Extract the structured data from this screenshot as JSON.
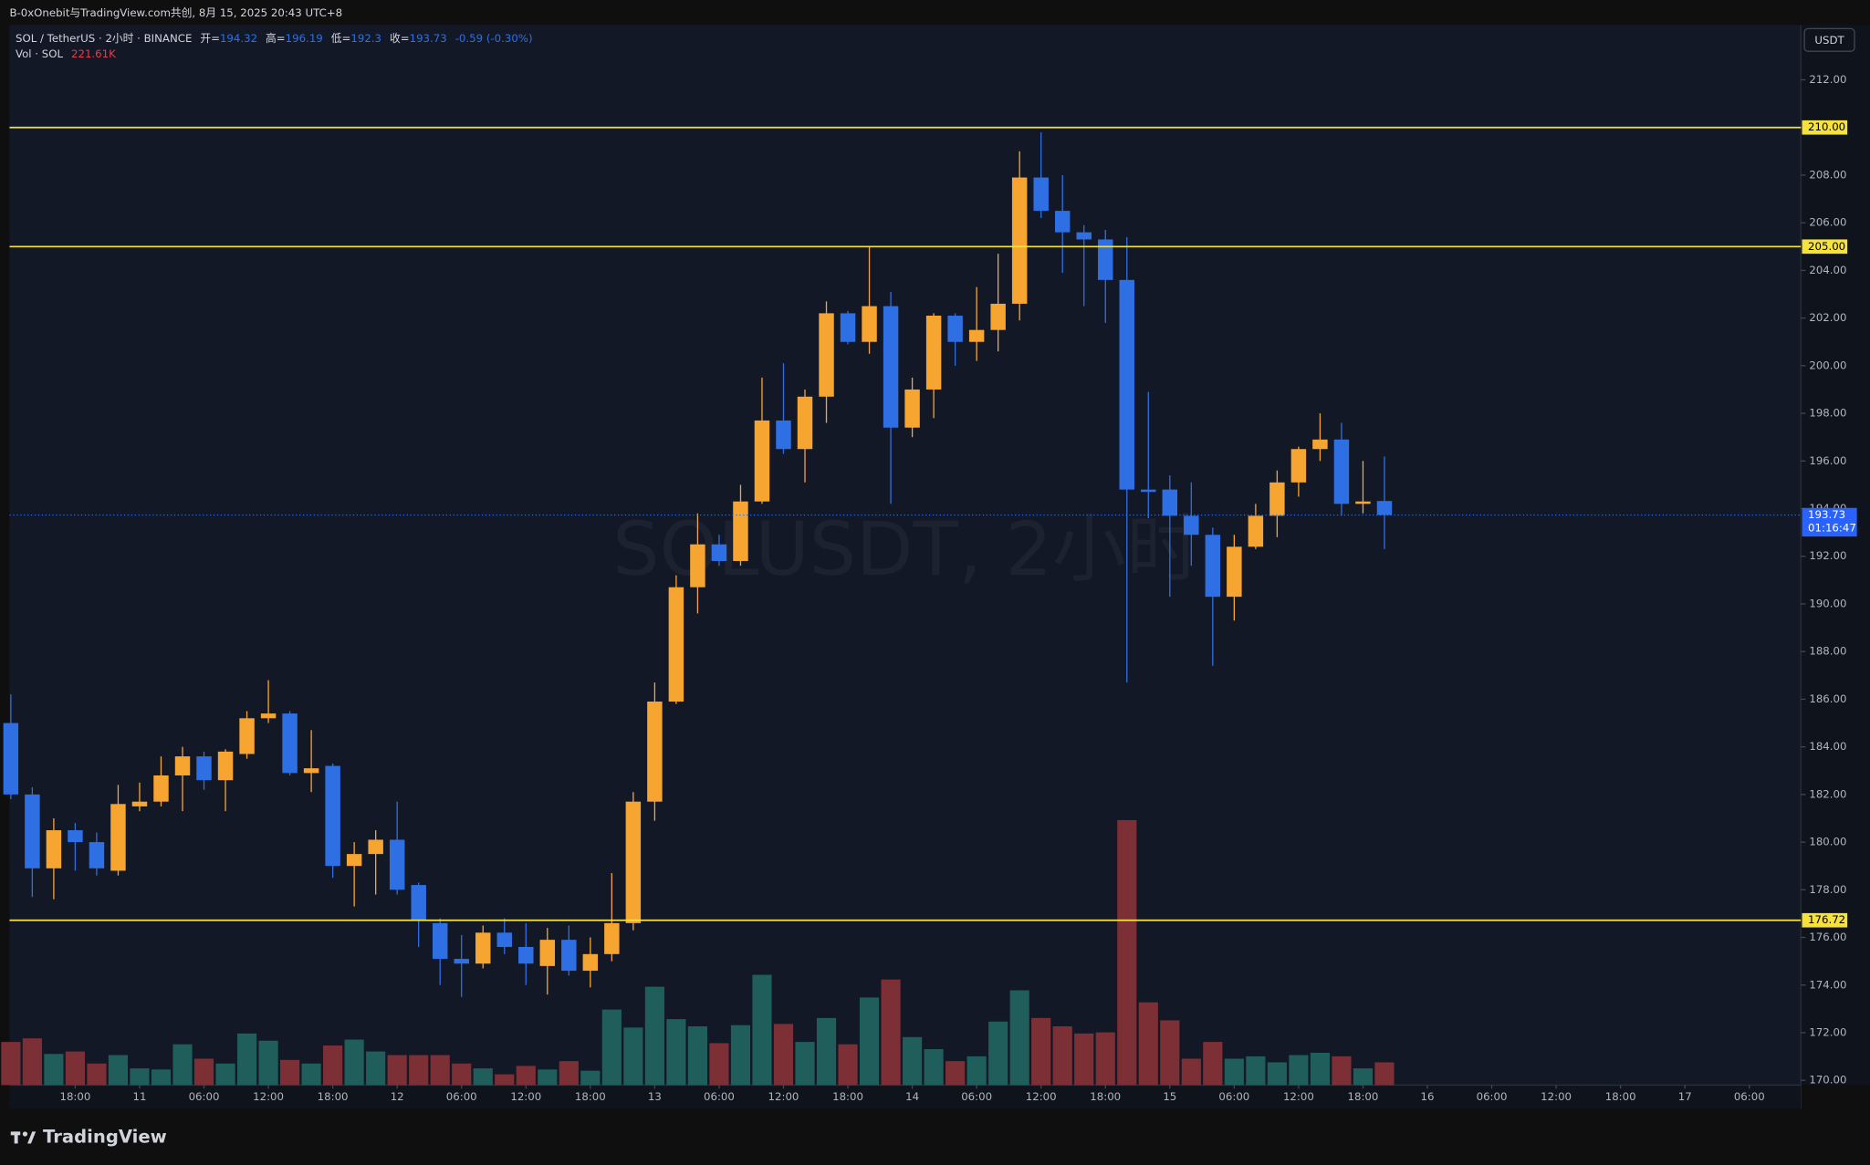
{
  "top_bar": "B-0xOnebit与TradingView.com共创, 8月 15, 2025 20:43 UTC+8",
  "brand": "TradingView",
  "chart_data": {
    "type": "candlestick",
    "watermark": "SOLUSDT, 2小时",
    "currency": "USDT",
    "header": {
      "symbol": "SOL / TetherUS · 2小时 · BINANCE",
      "open_label": "开=",
      "open": 194.32,
      "high_label": "高=",
      "high": 196.19,
      "low_label": "低=",
      "low": 192.3,
      "close_label": "收=",
      "close": 193.73,
      "change": "-0.59 (-0.30%)",
      "vol_label": "Vol · SOL",
      "vol_value": "221.61K"
    },
    "countdown": "01:16:47",
    "up_color": "#f7a531",
    "down_color": "#2f6fe4",
    "vol_up_color": "#1f5e5a",
    "vol_down_color": "#7c2f35",
    "open": [
      185.0,
      182.0,
      178.9,
      180.5,
      180.0,
      178.8,
      181.5,
      181.7,
      182.8,
      183.6,
      182.6,
      183.7,
      185.2,
      185.4,
      182.9,
      183.2,
      179.0,
      179.5,
      180.1,
      178.2,
      176.6,
      175.1,
      174.9,
      176.2,
      175.6,
      174.8,
      175.9,
      174.6,
      175.3,
      176.6,
      181.7,
      185.9,
      190.7,
      192.5,
      191.8,
      194.3,
      197.7,
      196.5,
      198.7,
      202.2,
      201.0,
      202.5,
      197.4,
      199.0,
      202.1,
      201.0,
      201.5,
      202.6,
      207.9,
      206.5,
      205.6,
      205.3,
      203.6,
      194.8,
      194.8,
      193.7,
      192.9,
      190.3,
      192.4,
      193.7,
      195.1,
      196.5,
      196.9,
      194.2,
      194.32
    ],
    "high": [
      186.2,
      182.3,
      181.0,
      180.8,
      180.4,
      182.4,
      182.5,
      183.6,
      184.0,
      183.8,
      183.9,
      185.5,
      186.8,
      185.5,
      184.7,
      183.3,
      180.0,
      180.5,
      181.7,
      178.3,
      176.8,
      176.1,
      176.5,
      176.8,
      176.6,
      176.4,
      176.5,
      176.0,
      178.7,
      182.1,
      186.7,
      191.2,
      193.8,
      192.9,
      195.0,
      199.5,
      200.1,
      199.0,
      202.7,
      202.3,
      205.0,
      203.1,
      199.5,
      202.2,
      202.2,
      203.3,
      204.7,
      209.0,
      209.8,
      208.0,
      205.9,
      205.7,
      205.4,
      198.9,
      195.4,
      195.1,
      193.2,
      192.9,
      194.2,
      195.6,
      196.6,
      198.0,
      197.6,
      196.0,
      196.19
    ],
    "low": [
      181.8,
      177.7,
      177.6,
      178.8,
      178.6,
      178.6,
      181.3,
      181.5,
      181.3,
      182.2,
      181.3,
      183.5,
      185.0,
      182.8,
      182.1,
      178.5,
      177.3,
      177.8,
      177.8,
      175.6,
      174.0,
      173.5,
      174.7,
      175.3,
      174.0,
      173.6,
      174.4,
      173.9,
      175.0,
      176.3,
      180.9,
      185.8,
      189.6,
      191.6,
      191.6,
      194.2,
      196.3,
      195.1,
      197.6,
      200.9,
      200.5,
      194.2,
      197.0,
      197.8,
      200.0,
      200.2,
      200.6,
      201.9,
      206.2,
      203.9,
      202.5,
      201.8,
      186.7,
      193.6,
      190.3,
      191.6,
      187.4,
      189.3,
      192.3,
      192.8,
      194.5,
      196.0,
      193.7,
      193.8,
      192.3
    ],
    "close": [
      182.0,
      178.9,
      180.5,
      180.0,
      178.9,
      181.6,
      181.7,
      182.8,
      183.6,
      182.6,
      183.8,
      185.2,
      185.4,
      182.9,
      183.1,
      179.0,
      179.5,
      180.1,
      178.0,
      176.7,
      175.1,
      174.9,
      176.2,
      175.6,
      174.9,
      175.9,
      174.6,
      175.3,
      176.6,
      181.7,
      185.9,
      190.7,
      192.5,
      191.8,
      194.3,
      197.7,
      196.5,
      198.7,
      202.2,
      201.0,
      202.5,
      197.4,
      199.0,
      202.1,
      201.0,
      201.5,
      202.6,
      207.9,
      206.5,
      205.6,
      205.3,
      203.6,
      194.8,
      194.7,
      193.7,
      192.9,
      190.3,
      192.4,
      193.7,
      195.1,
      196.5,
      196.9,
      194.2,
      194.3,
      193.73
    ],
    "volume": [
      420000,
      455000,
      303000,
      327000,
      210000,
      292000,
      163000,
      152000,
      397000,
      257000,
      210000,
      502000,
      432000,
      245000,
      210000,
      385000,
      443000,
      327000,
      292000,
      292000,
      292000,
      210000,
      163000,
      105000,
      187000,
      152000,
      233000,
      140000,
      735000,
      560000,
      957000,
      642000,
      572000,
      408000,
      583000,
      1073000,
      595000,
      420000,
      653000,
      397000,
      852000,
      1027000,
      467000,
      350000,
      233000,
      280000,
      618000,
      922000,
      653000,
      572000,
      502000,
      513000,
      2578000,
      805000,
      630000,
      257000,
      420000,
      257000,
      280000,
      222000,
      292000,
      315000,
      280000,
      163000,
      221610
    ],
    "ylim": [
      169.8,
      214.3
    ],
    "yticks": [
      {
        "value": 170,
        "label": "170.00"
      },
      {
        "value": 172,
        "label": "172.00"
      },
      {
        "value": 174,
        "label": "174.00"
      },
      {
        "value": 176,
        "label": "176.00"
      },
      {
        "value": 178,
        "label": "178.00"
      },
      {
        "value": 180,
        "label": "180.00"
      },
      {
        "value": 182,
        "label": "182.00"
      },
      {
        "value": 184,
        "label": "184.00"
      },
      {
        "value": 186,
        "label": "186.00"
      },
      {
        "value": 188,
        "label": "188.00"
      },
      {
        "value": 190,
        "label": "190.00"
      },
      {
        "value": 192,
        "label": "192.00"
      },
      {
        "value": 194,
        "label": "194.00"
      },
      {
        "value": 196,
        "label": "196.00"
      },
      {
        "value": 198,
        "label": "198.00"
      },
      {
        "value": 200,
        "label": "200.00"
      },
      {
        "value": 202,
        "label": "202.00"
      },
      {
        "value": 204,
        "label": "204.00"
      },
      {
        "value": 206,
        "label": "206.00"
      },
      {
        "value": 208,
        "label": "208.00"
      },
      {
        "value": 210,
        "label": "210.00"
      },
      {
        "value": 212,
        "label": "212.00"
      }
    ],
    "levels": [
      {
        "value": 210,
        "label": "210.00"
      },
      {
        "value": 205,
        "label": "205.00"
      },
      {
        "value": 176.72,
        "label": "176.72"
      }
    ],
    "level_color": "#f5e23c",
    "xlim": [
      -0.06,
      83.4
    ],
    "xticks": [
      {
        "value": 3,
        "label": "18:00"
      },
      {
        "value": 6,
        "label": "11"
      },
      {
        "value": 9,
        "label": "06:00"
      },
      {
        "value": 12,
        "label": "12:00"
      },
      {
        "value": 15,
        "label": "18:00"
      },
      {
        "value": 18,
        "label": "12"
      },
      {
        "value": 21,
        "label": "06:00"
      },
      {
        "value": 24,
        "label": "12:00"
      },
      {
        "value": 27,
        "label": "18:00"
      },
      {
        "value": 30,
        "label": "13"
      },
      {
        "value": 33,
        "label": "06:00"
      },
      {
        "value": 36,
        "label": "12:00"
      },
      {
        "value": 39,
        "label": "18:00"
      },
      {
        "value": 42,
        "label": "14"
      },
      {
        "value": 45,
        "label": "06:00"
      },
      {
        "value": 48,
        "label": "12:00"
      },
      {
        "value": 51,
        "label": "18:00"
      },
      {
        "value": 54,
        "label": "15"
      },
      {
        "value": 57,
        "label": "06:00"
      },
      {
        "value": 60,
        "label": "12:00"
      },
      {
        "value": 63,
        "label": "18:00"
      },
      {
        "value": 66,
        "label": "16"
      },
      {
        "value": 69,
        "label": "06:00"
      },
      {
        "value": 72,
        "label": "12:00"
      },
      {
        "value": 75,
        "label": "18:00"
      },
      {
        "value": 78,
        "label": "17"
      },
      {
        "value": 81,
        "label": "06:00"
      }
    ],
    "grid": false
  }
}
